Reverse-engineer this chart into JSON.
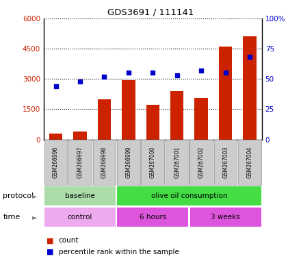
{
  "title": "GDS3691 / 111141",
  "samples": [
    "GSM266996",
    "GSM266997",
    "GSM266998",
    "GSM266999",
    "GSM267000",
    "GSM267001",
    "GSM267002",
    "GSM267003",
    "GSM267004"
  ],
  "bar_heights": [
    280,
    380,
    2000,
    2950,
    1700,
    2380,
    2050,
    4600,
    5100
  ],
  "dot_values": [
    44,
    48,
    52,
    55,
    55,
    53,
    57,
    55,
    68
  ],
  "bar_color": "#cc2200",
  "dot_color": "#0000cc",
  "left_ylim": [
    0,
    6000
  ],
  "right_ylim": [
    0,
    100
  ],
  "left_yticks": [
    0,
    1500,
    3000,
    4500,
    6000
  ],
  "right_yticks": [
    0,
    25,
    50,
    75,
    100
  ],
  "right_yticklabels": [
    "0",
    "25",
    "50",
    "75",
    "100%"
  ],
  "protocol_groups": [
    {
      "label": "baseline",
      "start": 0,
      "end": 3,
      "color": "#aaddaa"
    },
    {
      "label": "olive oil consumption",
      "start": 3,
      "end": 9,
      "color": "#44dd44"
    }
  ],
  "time_groups": [
    {
      "label": "control",
      "start": 0,
      "end": 3,
      "color": "#eeaaee"
    },
    {
      "label": "6 hours",
      "start": 3,
      "end": 6,
      "color": "#dd55dd"
    },
    {
      "label": "3 weeks",
      "start": 6,
      "end": 9,
      "color": "#dd55dd"
    }
  ],
  "legend_count_label": "count",
  "legend_pct_label": "percentile rank within the sample",
  "protocol_label": "protocol",
  "time_label": "time",
  "box_color": "#cccccc",
  "box_border_color": "#aaaaaa"
}
